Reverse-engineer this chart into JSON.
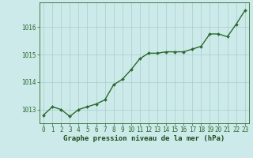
{
  "x": [
    0,
    1,
    2,
    3,
    4,
    5,
    6,
    7,
    8,
    9,
    10,
    11,
    12,
    13,
    14,
    15,
    16,
    17,
    18,
    19,
    20,
    21,
    22,
    23
  ],
  "y": [
    1012.8,
    1013.1,
    1013.0,
    1012.75,
    1013.0,
    1013.1,
    1013.2,
    1013.35,
    1013.9,
    1014.1,
    1014.45,
    1014.85,
    1015.05,
    1015.05,
    1015.1,
    1015.1,
    1015.1,
    1015.2,
    1015.3,
    1015.75,
    1015.75,
    1015.65,
    1016.1,
    1016.6
  ],
  "line_color": "#2d6a2d",
  "marker": "D",
  "marker_size": 2.0,
  "bg_color": "#cceaea",
  "grid_color": "#aacccc",
  "xlabel": "Graphe pression niveau de la mer (hPa)",
  "xlabel_color": "#1a4d1a",
  "tick_color": "#2d6a2d",
  "ylim": [
    1012.5,
    1016.9
  ],
  "yticks": [
    1013,
    1014,
    1015,
    1016
  ],
  "xticks": [
    0,
    1,
    2,
    3,
    4,
    5,
    6,
    7,
    8,
    9,
    10,
    11,
    12,
    13,
    14,
    15,
    16,
    17,
    18,
    19,
    20,
    21,
    22,
    23
  ],
  "line_width": 1.0,
  "tick_fontsize": 5.5,
  "xlabel_fontsize": 6.5
}
